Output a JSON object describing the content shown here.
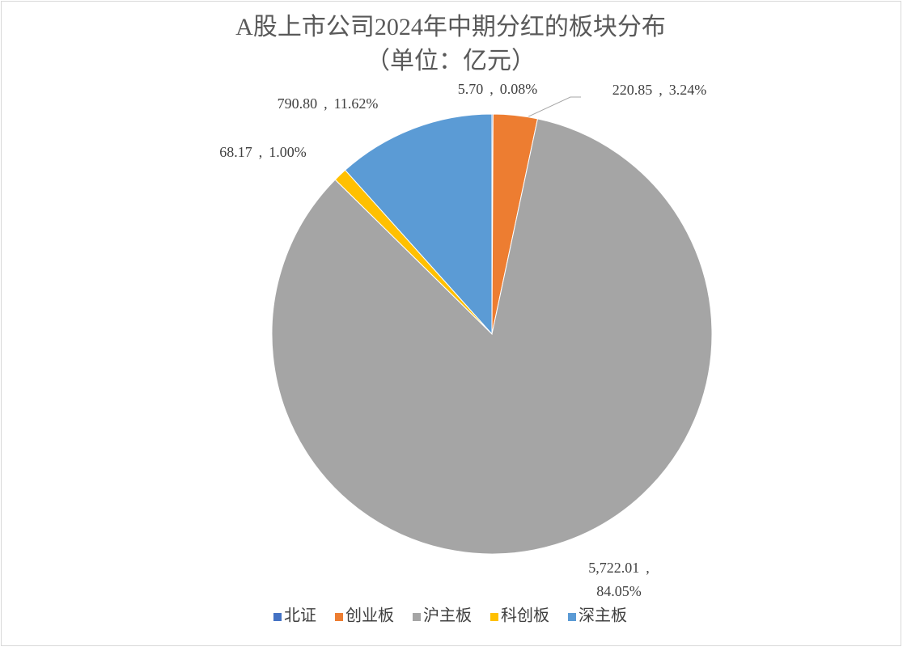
{
  "chart_data": {
    "type": "pie",
    "title": "A股上市公司2024年中期分红的板块分布",
    "subtitle": "（单位：亿元）",
    "categories": [
      "北证",
      "创业板",
      "沪主板",
      "科创板",
      "深主板"
    ],
    "values": [
      5.7,
      220.85,
      5722.01,
      68.17,
      790.8
    ],
    "value_labels": [
      "5.70",
      "220.85",
      "5,722.01",
      "68.17",
      "790.80"
    ],
    "percents": [
      0.08,
      3.24,
      84.05,
      1.0,
      11.62
    ],
    "percent_labels": [
      "0.08%",
      "3.24%",
      "84.05%",
      "1.00%",
      "11.62%"
    ],
    "label_separator": ",",
    "colors": [
      "#4472c4",
      "#ed7d31",
      "#a5a5a5",
      "#ffc000",
      "#5b9bd5"
    ],
    "legend": "bottom"
  }
}
